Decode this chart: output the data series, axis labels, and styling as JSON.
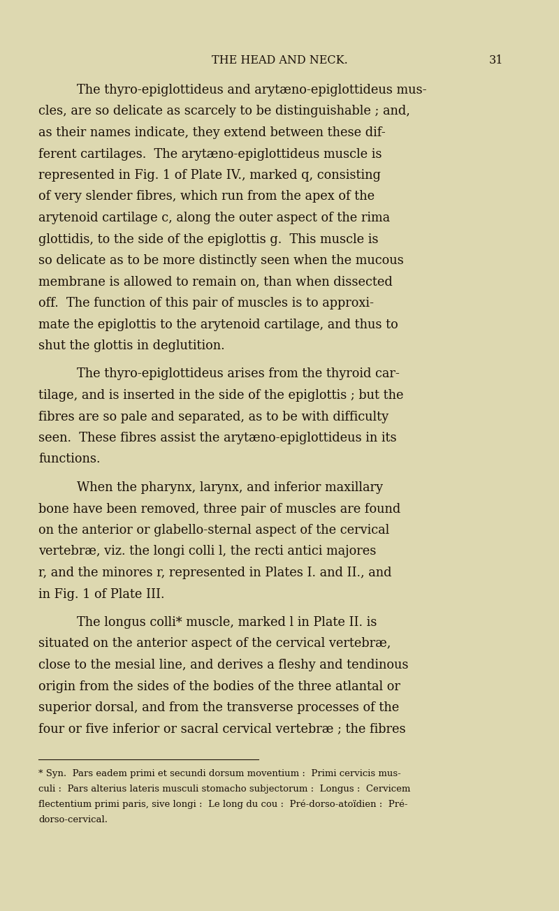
{
  "background_color": "#ddd8b0",
  "text_color": "#1a1008",
  "header_text": "THE HEAD AND NECK.",
  "page_number": "31",
  "header_fontsize": 11.5,
  "body_fontsize": 12.8,
  "footnote_fontsize": 9.5,
  "paragraphs": [
    {
      "indent": true,
      "lines": [
        "The thyro-epiglottideus and arytæno-epiglottideus mus-",
        "cles, are so delicate as scarcely to be distinguishable ; and,",
        "as their names indicate, they extend between these dif-",
        "ferent cartilages.  The arytæno-epiglottideus muscle is",
        "represented in Fig. 1 of Plate IV., marked q, consisting",
        "of very slender fibres, which run from the apex of the",
        "arytenoid cartilage c, along the outer aspect of the rima",
        "glottidis, to the side of the epiglottis g.  This muscle is",
        "so delicate as to be more distinctly seen when the mucous",
        "membrane is allowed to remain on, than when dissected",
        "off.  The function of this pair of muscles is to approxi-",
        "mate the epiglottis to the arytenoid cartilage, and thus to",
        "shut the glottis in deglutition."
      ]
    },
    {
      "indent": true,
      "lines": [
        "The thyro-epiglottideus arises from the thyroid car-",
        "tilage, and is inserted in the side of the epiglottis ; but the",
        "fibres are so pale and separated, as to be with difficulty",
        "seen.  These fibres assist the arytæno-epiglottideus in its",
        "functions."
      ]
    },
    {
      "indent": true,
      "lines": [
        "When the pharynx, larynx, and inferior maxillary",
        "bone have been removed, three pair of muscles are found",
        "on the anterior or glabello-sternal aspect of the cervical",
        "vertebræ, viz. the longi colli l, the recti antici majores",
        "r, and the minores r, represented in Plates I. and II., and",
        "in Fig. 1 of Plate III."
      ]
    },
    {
      "indent": true,
      "lines": [
        "The longus colli* muscle, marked l in Plate II. is",
        "situated on the anterior aspect of the cervical vertebræ,",
        "close to the mesial line, and derives a fleshy and tendinous",
        "origin from the sides of the bodies of the three atlantal or",
        "superior dorsal, and from the transverse processes of the",
        "four or five inferior or sacral cervical vertebræ ; the fibres"
      ]
    }
  ],
  "footnote_lines": [
    "* Syn.  Pars eadem primi et secundi dorsum moventium :  Primi cervicis mus-",
    "culi :  Pars alterius lateris musculi stomacho subjectorum :  Longus :  Cervicem",
    "flectentium primi paris, sive longi :  Le long du cou :  Pré-dorso-atoïdien :  Pré-",
    "dorso-cervical."
  ]
}
